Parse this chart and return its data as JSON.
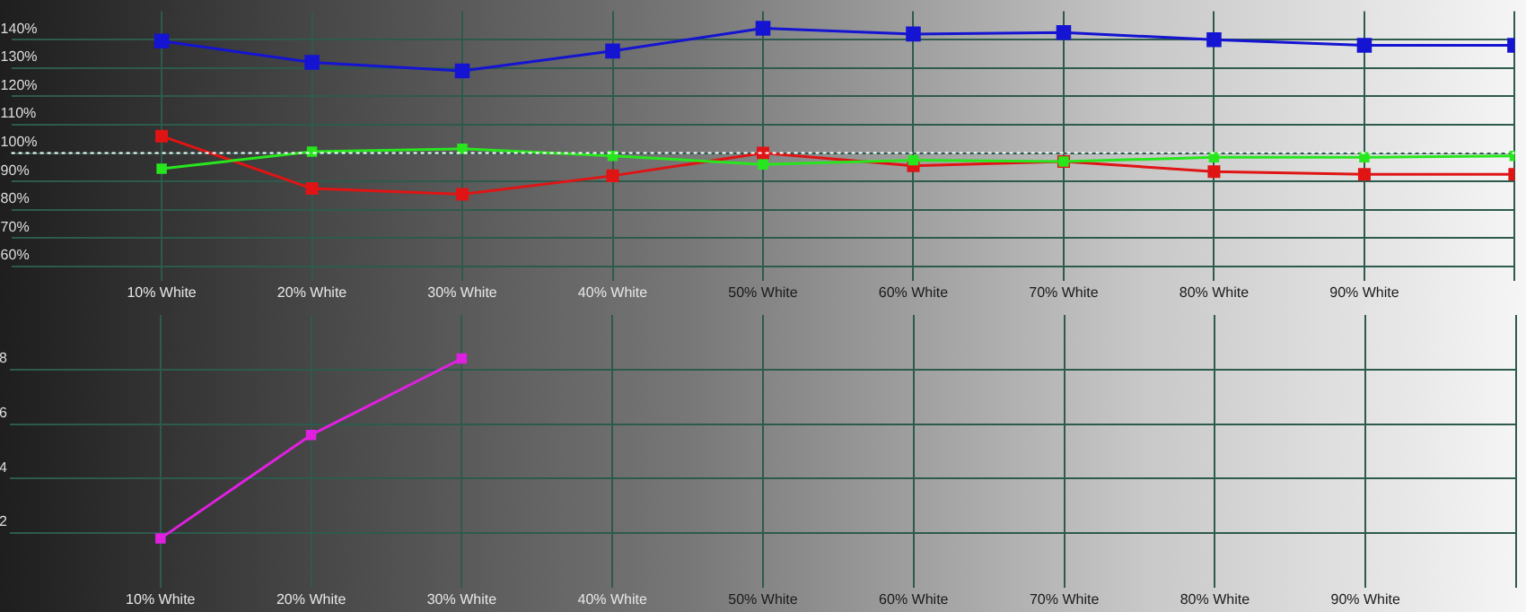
{
  "chart_data": [
    {
      "type": "line",
      "categories": [
        "10% White",
        "20% White",
        "30% White",
        "40% White",
        "50% White",
        "60% White",
        "70% White",
        "80% White",
        "90% White",
        null
      ],
      "series": [
        {
          "color": "#1414d2",
          "values": [
            139.5,
            132,
            129,
            136,
            144,
            142,
            142.5,
            140,
            138,
            138
          ]
        },
        {
          "color": "#e01414",
          "values": [
            106,
            87.5,
            85.5,
            92,
            100,
            95.5,
            97,
            93.5,
            92.5,
            92.5
          ]
        },
        {
          "color": "#28e61e",
          "values": [
            94.5,
            100.5,
            101.5,
            99,
            96,
            97.5,
            97,
            98.5,
            98.5,
            99
          ]
        }
      ],
      "ylim": [
        55,
        150
      ],
      "yticks": [
        {
          "value": 60,
          "label": "60%"
        },
        {
          "value": 70,
          "label": "70%"
        },
        {
          "value": 80,
          "label": "80%"
        },
        {
          "value": 90,
          "label": "90%"
        },
        {
          "value": 100,
          "label": "100%"
        },
        {
          "value": 110,
          "label": "110%"
        },
        {
          "value": 120,
          "label": "120%"
        },
        {
          "value": 130,
          "label": "130%"
        },
        {
          "value": 140,
          "label": "140%"
        }
      ],
      "ref_lines": [
        {
          "axis": "y",
          "value": 100,
          "color": "#ffffff",
          "line_style": "dotted"
        }
      ],
      "grid": true,
      "legend": false,
      "marker": "square",
      "line_style": "solid"
    },
    {
      "type": "line",
      "categories": [
        "10% White",
        "20% White",
        "30% White",
        "40% White",
        "50% White",
        "60% White",
        "70% White",
        "80% White",
        "90% White",
        null
      ],
      "series": [
        {
          "color": "#e020e0",
          "values": [
            1.8,
            5.6,
            8.4,
            null,
            null,
            null,
            null,
            null,
            null,
            null
          ]
        }
      ],
      "ylim": [
        0,
        10
      ],
      "yticks": [
        2,
        4,
        6,
        8
      ],
      "grid": true,
      "legend": false,
      "marker": "square",
      "line_style": "solid"
    }
  ]
}
